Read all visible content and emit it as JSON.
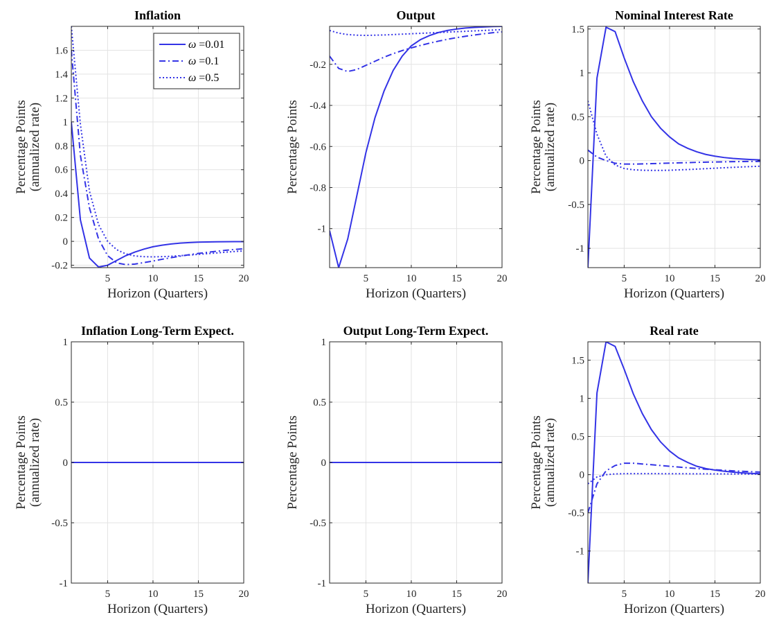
{
  "style": {
    "line_color": "#3333e6",
    "grid_color": "#e3e3e3",
    "axis_color": "#262626"
  },
  "chart_data": [
    {
      "type": "line",
      "title": "Inflation",
      "xlabel": "Horizon (Quarters)",
      "ylabel": [
        "Percentage Points",
        "(annualized rate)"
      ],
      "xlim": [
        1,
        20
      ],
      "ylim": [
        -0.22,
        1.8
      ],
      "xticks": [
        5,
        10,
        15,
        20
      ],
      "yticks": [
        -0.2,
        0,
        0.2,
        0.4,
        0.6,
        0.8,
        1,
        1.2,
        1.4,
        1.6
      ],
      "ytick_labels": [
        "-0.2",
        "0",
        "0.2",
        "0.4",
        "0.6",
        "0.8",
        "1",
        "1.2",
        "1.4",
        "1.6"
      ],
      "grid": true,
      "legend": {
        "placement": "top-right",
        "symbol": "ω",
        "entries": [
          " =0.01",
          " =0.1",
          " =0.5"
        ]
      },
      "x": [
        1,
        2,
        3,
        4,
        5,
        6,
        7,
        8,
        9,
        10,
        11,
        12,
        13,
        14,
        15,
        16,
        17,
        18,
        19,
        20
      ],
      "series": [
        {
          "style": "solid",
          "values": [
            1.0,
            0.18,
            -0.14,
            -0.215,
            -0.2,
            -0.16,
            -0.12,
            -0.09,
            -0.065,
            -0.045,
            -0.032,
            -0.022,
            -0.015,
            -0.01,
            -0.007,
            -0.005,
            -0.004,
            -0.003,
            -0.002,
            -0.002
          ]
        },
        {
          "style": "dashdot",
          "values": [
            1.6,
            0.72,
            0.28,
            0.02,
            -0.12,
            -0.18,
            -0.195,
            -0.19,
            -0.178,
            -0.165,
            -0.15,
            -0.137,
            -0.124,
            -0.112,
            -0.101,
            -0.092,
            -0.083,
            -0.075,
            -0.068,
            -0.062
          ]
        },
        {
          "style": "dotted",
          "values": [
            1.8,
            0.98,
            0.42,
            0.14,
            0.0,
            -0.07,
            -0.105,
            -0.122,
            -0.128,
            -0.13,
            -0.128,
            -0.125,
            -0.12,
            -0.115,
            -0.109,
            -0.103,
            -0.097,
            -0.091,
            -0.085,
            -0.08
          ]
        }
      ]
    },
    {
      "type": "line",
      "title": "Output",
      "xlabel": "Horizon (Quarters)",
      "ylabel": [
        "Percentage Points"
      ],
      "xlim": [
        1,
        20
      ],
      "ylim": [
        -1.19,
        -0.015
      ],
      "xticks": [
        5,
        10,
        15,
        20
      ],
      "yticks": [
        -1,
        -0.8,
        -0.6,
        -0.4,
        -0.2
      ],
      "ytick_labels": [
        "-1",
        "-0.8",
        "-0.6",
        "-0.4",
        "-0.2"
      ],
      "grid": true,
      "x": [
        1,
        2,
        3,
        4,
        5,
        6,
        7,
        8,
        9,
        10,
        11,
        12,
        13,
        14,
        15,
        16,
        17,
        18,
        19,
        20
      ],
      "series": [
        {
          "style": "solid",
          "values": [
            -1.01,
            -1.19,
            -1.05,
            -0.84,
            -0.63,
            -0.46,
            -0.33,
            -0.23,
            -0.16,
            -0.11,
            -0.08,
            -0.06,
            -0.045,
            -0.035,
            -0.028,
            -0.023,
            -0.02,
            -0.018,
            -0.016,
            -0.015
          ]
        },
        {
          "style": "dashdot",
          "values": [
            -0.16,
            -0.22,
            -0.235,
            -0.225,
            -0.205,
            -0.185,
            -0.165,
            -0.148,
            -0.133,
            -0.12,
            -0.108,
            -0.097,
            -0.087,
            -0.078,
            -0.07,
            -0.063,
            -0.057,
            -0.051,
            -0.046,
            -0.042
          ]
        },
        {
          "style": "dotted",
          "values": [
            -0.035,
            -0.048,
            -0.055,
            -0.058,
            -0.059,
            -0.058,
            -0.057,
            -0.055,
            -0.053,
            -0.051,
            -0.049,
            -0.047,
            -0.045,
            -0.043,
            -0.041,
            -0.039,
            -0.037,
            -0.035,
            -0.033,
            -0.031
          ]
        }
      ]
    },
    {
      "type": "line",
      "title": "Nominal Interest Rate",
      "xlabel": "Horizon (Quarters)",
      "ylabel": [
        "Percentage Points",
        "(annualized rate)"
      ],
      "xlim": [
        1,
        20
      ],
      "ylim": [
        -1.22,
        1.53
      ],
      "xticks": [
        5,
        10,
        15,
        20
      ],
      "yticks": [
        -1,
        -0.5,
        0,
        0.5,
        1,
        1.5
      ],
      "ytick_labels": [
        "-1",
        "-0.5",
        "0",
        "0.5",
        "1",
        "1.5"
      ],
      "grid": true,
      "x": [
        1,
        2,
        3,
        4,
        5,
        6,
        7,
        8,
        9,
        10,
        11,
        12,
        13,
        14,
        15,
        16,
        17,
        18,
        19,
        20
      ],
      "series": [
        {
          "style": "solid",
          "values": [
            -1.22,
            0.94,
            1.52,
            1.47,
            1.17,
            0.9,
            0.68,
            0.5,
            0.37,
            0.27,
            0.19,
            0.14,
            0.1,
            0.07,
            0.05,
            0.035,
            0.025,
            0.018,
            0.012,
            0.008
          ]
        },
        {
          "style": "dashdot",
          "values": [
            0.12,
            0.04,
            0.0,
            -0.03,
            -0.04,
            -0.04,
            -0.038,
            -0.035,
            -0.032,
            -0.029,
            -0.026,
            -0.023,
            -0.02,
            -0.018,
            -0.016,
            -0.014,
            -0.012,
            -0.011,
            -0.01,
            -0.009
          ]
        },
        {
          "style": "dotted",
          "values": [
            0.68,
            0.3,
            0.05,
            -0.05,
            -0.09,
            -0.105,
            -0.11,
            -0.112,
            -0.112,
            -0.11,
            -0.106,
            -0.102,
            -0.097,
            -0.092,
            -0.087,
            -0.082,
            -0.077,
            -0.072,
            -0.068,
            -0.064
          ]
        }
      ]
    },
    {
      "type": "line",
      "title": "Inflation Long-Term Expect.",
      "xlabel": "Horizon (Quarters)",
      "ylabel": [
        "Percentage Points",
        "(annualized rate)"
      ],
      "xlim": [
        1,
        20
      ],
      "ylim": [
        -1,
        1
      ],
      "xticks": [
        5,
        10,
        15,
        20
      ],
      "yticks": [
        -1,
        -0.5,
        0,
        0.5,
        1
      ],
      "ytick_labels": [
        "-1",
        "-0.5",
        "0",
        "0.5",
        "1"
      ],
      "grid": true,
      "x": [
        1,
        2,
        3,
        4,
        5,
        6,
        7,
        8,
        9,
        10,
        11,
        12,
        13,
        14,
        15,
        16,
        17,
        18,
        19,
        20
      ],
      "series": [
        {
          "style": "solid",
          "values": [
            0,
            0,
            0,
            0,
            0,
            0,
            0,
            0,
            0,
            0,
            0,
            0,
            0,
            0,
            0,
            0,
            0,
            0,
            0,
            0
          ]
        },
        {
          "style": "dashdot",
          "values": [
            0,
            0,
            0,
            0,
            0,
            0,
            0,
            0,
            0,
            0,
            0,
            0,
            0,
            0,
            0,
            0,
            0,
            0,
            0,
            0
          ]
        },
        {
          "style": "dotted",
          "values": [
            0,
            0,
            0,
            0,
            0,
            0,
            0,
            0,
            0,
            0,
            0,
            0,
            0,
            0,
            0,
            0,
            0,
            0,
            0,
            0
          ]
        }
      ]
    },
    {
      "type": "line",
      "title": "Output Long-Term Expect.",
      "xlabel": "Horizon (Quarters)",
      "ylabel": [
        "Percentage Points"
      ],
      "xlim": [
        1,
        20
      ],
      "ylim": [
        -1,
        1
      ],
      "xticks": [
        5,
        10,
        15,
        20
      ],
      "yticks": [
        -1,
        -0.5,
        0,
        0.5,
        1
      ],
      "ytick_labels": [
        "-1",
        "-0.5",
        "0",
        "0.5",
        "1"
      ],
      "grid": true,
      "x": [
        1,
        2,
        3,
        4,
        5,
        6,
        7,
        8,
        9,
        10,
        11,
        12,
        13,
        14,
        15,
        16,
        17,
        18,
        19,
        20
      ],
      "series": [
        {
          "style": "solid",
          "values": [
            0,
            0,
            0,
            0,
            0,
            0,
            0,
            0,
            0,
            0,
            0,
            0,
            0,
            0,
            0,
            0,
            0,
            0,
            0,
            0
          ]
        },
        {
          "style": "dashdot",
          "values": [
            0,
            0,
            0,
            0,
            0,
            0,
            0,
            0,
            0,
            0,
            0,
            0,
            0,
            0,
            0,
            0,
            0,
            0,
            0,
            0
          ]
        },
        {
          "style": "dotted",
          "values": [
            0,
            0,
            0,
            0,
            0,
            0,
            0,
            0,
            0,
            0,
            0,
            0,
            0,
            0,
            0,
            0,
            0,
            0,
            0,
            0
          ]
        }
      ]
    },
    {
      "type": "line",
      "title": "Real rate",
      "xlabel": "Horizon (Quarters)",
      "ylabel": [
        "Percentage Points",
        "(annualized rate)"
      ],
      "xlim": [
        1,
        20
      ],
      "ylim": [
        -1.42,
        1.74
      ],
      "xticks": [
        5,
        10,
        15,
        20
      ],
      "yticks": [
        -1,
        -0.5,
        0,
        0.5,
        1,
        1.5
      ],
      "ytick_labels": [
        "-1",
        "-0.5",
        "0",
        "0.5",
        "1",
        "1.5"
      ],
      "grid": true,
      "x": [
        1,
        2,
        3,
        4,
        5,
        6,
        7,
        8,
        9,
        10,
        11,
        12,
        13,
        14,
        15,
        16,
        17,
        18,
        19,
        20
      ],
      "series": [
        {
          "style": "solid",
          "values": [
            -1.42,
            1.07,
            1.74,
            1.68,
            1.38,
            1.06,
            0.8,
            0.59,
            0.43,
            0.31,
            0.22,
            0.16,
            0.11,
            0.08,
            0.06,
            0.045,
            0.033,
            0.024,
            0.017,
            0.012
          ]
        },
        {
          "style": "dashdot",
          "values": [
            -0.5,
            -0.12,
            0.05,
            0.12,
            0.15,
            0.15,
            0.14,
            0.13,
            0.12,
            0.11,
            0.1,
            0.09,
            0.08,
            0.072,
            0.064,
            0.057,
            0.05,
            0.044,
            0.039,
            0.034
          ]
        },
        {
          "style": "dotted",
          "values": [
            -0.12,
            -0.03,
            0.0,
            0.01,
            0.013,
            0.014,
            0.014,
            0.014,
            0.013,
            0.013,
            0.012,
            0.012,
            0.011,
            0.011,
            0.01,
            0.01,
            0.009,
            0.009,
            0.008,
            0.008
          ]
        }
      ]
    }
  ]
}
